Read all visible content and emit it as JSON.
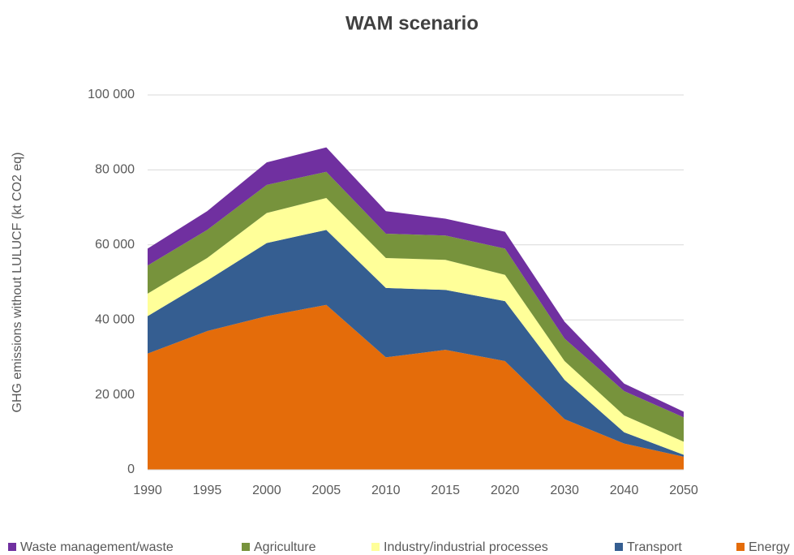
{
  "chart_data": {
    "type": "stacked_area",
    "title": "WAM scenario",
    "y_label": "GHG emissions without LULUCF (kt CO2 eq)",
    "categories": [
      "1990",
      "1995",
      "2000",
      "2005",
      "2010",
      "2015",
      "2020",
      "2030",
      "2040",
      "2050"
    ],
    "series": [
      {
        "name": "Waste management/waste",
        "color": "#7030a0",
        "values": [
          4500,
          5000,
          6000,
          6500,
          6000,
          4500,
          4500,
          4500,
          2000,
          1500
        ]
      },
      {
        "name": "Agriculture",
        "color": "#77933c",
        "values": [
          7500,
          7500,
          7500,
          7000,
          6500,
          6500,
          7000,
          6000,
          6500,
          6500
        ]
      },
      {
        "name": "Industry/industrial processes",
        "color": "#ffff99",
        "values": [
          6000,
          6000,
          8000,
          8500,
          8000,
          8000,
          7000,
          5000,
          4500,
          3500
        ]
      },
      {
        "name": "Transport",
        "color": "#355e91",
        "values": [
          10000,
          13500,
          19500,
          20000,
          18500,
          16000,
          16000,
          10500,
          3000,
          500
        ]
      },
      {
        "name": "Energy",
        "color": "#e46c0a",
        "values": [
          31000,
          37000,
          41000,
          44000,
          30000,
          32000,
          29000,
          13500,
          7000,
          3500
        ]
      }
    ],
    "ylim": [
      0,
      100000
    ],
    "yticks": [
      0,
      {
        "value": 20000,
        "label": "20 000"
      },
      {
        "value": 40000,
        "label": "40 000"
      },
      {
        "value": 60000,
        "label": "60 000"
      },
      {
        "value": 80000,
        "label": "80 000"
      },
      {
        "value": 100000,
        "label": "100 000"
      }
    ],
    "grid": true,
    "legend": "bottom"
  }
}
